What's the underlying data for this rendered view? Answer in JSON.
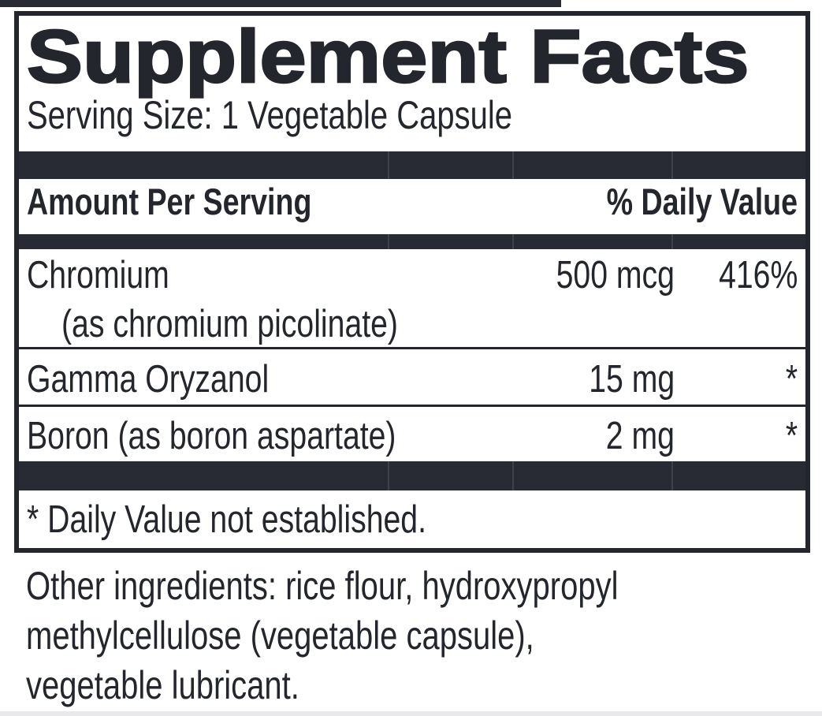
{
  "panel": {
    "title": "Supplement Facts",
    "serving_size": "Serving Size: 1 Vegetable Capsule",
    "columns": {
      "amount_header": "Amount Per Serving",
      "daily_value_header": "% Daily Value"
    },
    "rows": [
      {
        "name": "Chromium",
        "source": "(as chromium picolinate)",
        "amount": "500 mcg",
        "daily_value": "416%"
      },
      {
        "name": "Gamma Oryzanol",
        "source": "",
        "amount": "15 mg",
        "daily_value": "*"
      },
      {
        "name": "Boron (as boron aspartate)",
        "source": "",
        "amount": "2 mg",
        "daily_value": "*"
      }
    ],
    "footnote": "* Daily Value not established."
  },
  "other_ingredients": {
    "lines": [
      "Other ingredients: rice flour, hydroxypropyl",
      "methylcellulose (vegetable capsule),",
      "vegetable lubricant."
    ]
  },
  "colors": {
    "ink": "#24262e",
    "bar": "#282b33",
    "bar_divider": "#3e424c",
    "bottom_strip": "#e9e9eb"
  }
}
